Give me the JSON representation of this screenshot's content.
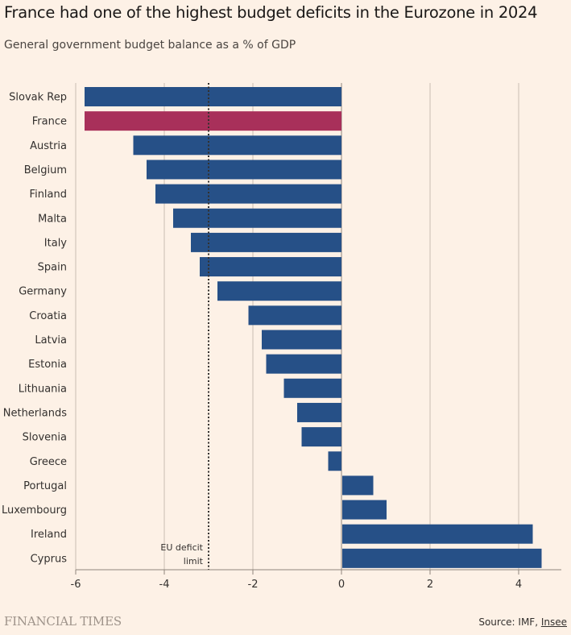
{
  "chart_data": {
    "type": "bar",
    "orientation": "horizontal",
    "title": "France had one of the highest budget deficits in the Eurozone in 2024",
    "subtitle": "General government budget balance as a % of GDP",
    "xlabel": "",
    "ylabel": "",
    "xlim": [
      -6,
      5
    ],
    "xticks": [
      -6,
      -4,
      -2,
      0,
      2,
      4
    ],
    "xtick_labels": [
      "-6",
      "-4",
      "-2",
      "0",
      "2",
      "4"
    ],
    "grid": true,
    "categories": [
      "Slovak Rep",
      "France",
      "Austria",
      "Belgium",
      "Finland",
      "Malta",
      "Italy",
      "Spain",
      "Germany",
      "Croatia",
      "Latvia",
      "Estonia",
      "Lithuania",
      "Netherlands",
      "Slovenia",
      "Greece",
      "Portugal",
      "Luxembourg",
      "Ireland",
      "Cyprus"
    ],
    "values": [
      -5.8,
      -5.8,
      -4.7,
      -4.4,
      -4.2,
      -3.8,
      -3.4,
      -3.2,
      -2.8,
      -2.1,
      -1.8,
      -1.7,
      -1.3,
      -1.0,
      -0.9,
      -0.3,
      0.7,
      1.0,
      4.3,
      4.5
    ],
    "highlight": "France",
    "colors": {
      "default": "#265087",
      "highlight": "#a8305a",
      "reference_line": "#33302e",
      "grid": "#c9bdb2",
      "axis": "#8f857c"
    },
    "reference_line": {
      "value": -3,
      "label_line1": "EU deficit",
      "label_line2": "limit"
    }
  },
  "footer": {
    "brand": "FINANCIAL TIMES",
    "source_prefix": "Source: IMF, ",
    "source_link": "Insee"
  }
}
